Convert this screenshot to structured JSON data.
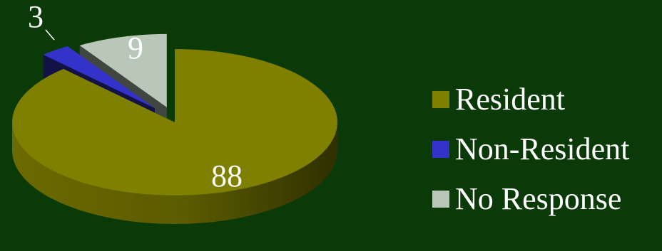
{
  "chart_data": {
    "type": "pie",
    "title": "",
    "style": "3d-exploded",
    "legend_placement": "right",
    "background_color": "#0b3a09",
    "categories": [
      "Resident",
      "Non-Resident",
      "No Response"
    ],
    "values": [
      88,
      3,
      9
    ],
    "data_labels": [
      "88",
      "3",
      "9"
    ],
    "colors": [
      "#808000",
      "#3333cc",
      "#b8c7b8"
    ],
    "legend": [
      {
        "label": "Resident",
        "color": "#808000"
      },
      {
        "label": "Non-Resident",
        "color": "#3333cc"
      },
      {
        "label": "No Response",
        "color": "#b8c7b8"
      }
    ]
  }
}
